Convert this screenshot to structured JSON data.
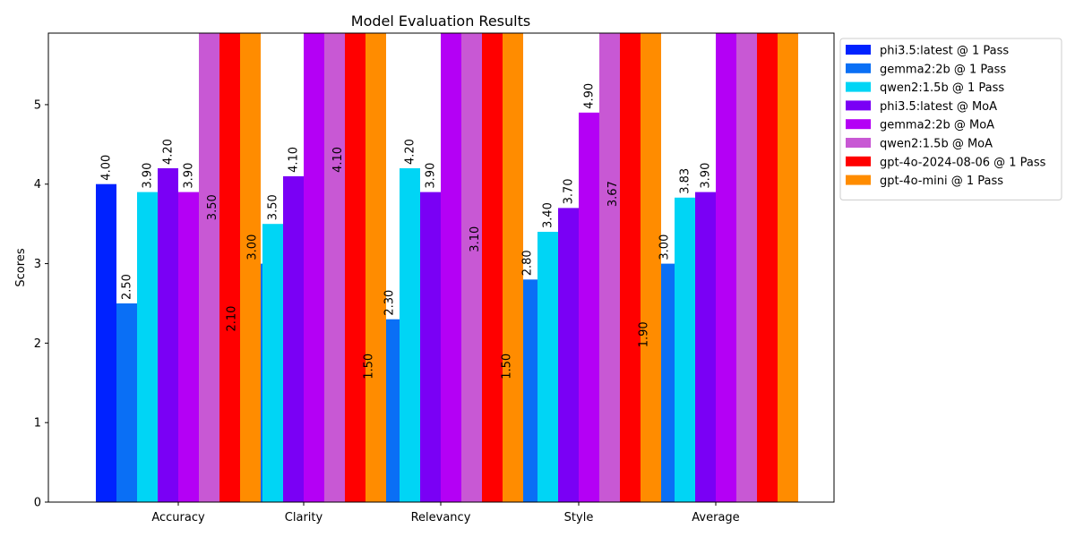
{
  "chart_data": {
    "type": "bar",
    "title": "Model Evaluation Results",
    "xlabel": "",
    "ylabel": "Scores",
    "ylim": [
      0,
      5.9
    ],
    "yticks": [
      0,
      1,
      2,
      3,
      4,
      5
    ],
    "grid": false,
    "legend_position": "outside-right",
    "categories": [
      "Accuracy",
      "Clarity",
      "Relevancy",
      "Style",
      "Average"
    ],
    "series": [
      {
        "name": "phi3.5:latest @ 1 Pass",
        "color": "#0022ff",
        "values": [
          4.0,
          2.1,
          1.5,
          1.5,
          1.9
        ],
        "labels": [
          "4.00",
          "2.10",
          "1.50",
          "1.50",
          "1.90"
        ]
      },
      {
        "name": "gemma2:2b @ 1 Pass",
        "color": "#0a6ff5",
        "values": [
          2.5,
          3.0,
          2.3,
          2.8,
          3.0
        ],
        "labels": [
          "2.50",
          "3.00",
          "2.30",
          "2.80",
          "3.00"
        ]
      },
      {
        "name": "qwen2:1.5b @ 1 Pass",
        "color": "#00d5f5",
        "values": [
          3.9,
          3.5,
          4.2,
          3.4,
          3.83
        ],
        "labels": [
          "3.90",
          "3.50",
          "4.20",
          "3.40",
          "3.83"
        ]
      },
      {
        "name": "phi3.5:latest @ MoA",
        "color": "#7a00f5",
        "values": [
          4.2,
          4.1,
          3.9,
          3.7,
          3.9
        ],
        "labels": [
          "4.20",
          "4.10",
          "3.90",
          "3.70",
          "3.90"
        ]
      },
      {
        "name": "gemma2:2b @ MoA",
        "color": "#b400f5",
        "values": [
          3.9,
          6.2,
          6.2,
          4.9,
          6.2
        ],
        "labels": [
          "3.90",
          null,
          null,
          "4.90",
          null
        ]
      },
      {
        "name": "qwen2:1.5b @ MoA",
        "color": "#c858d4",
        "values": [
          6.2,
          6.2,
          6.2,
          6.2,
          6.2
        ],
        "labels": [
          null,
          null,
          null,
          null,
          null
        ]
      },
      {
        "name": "gpt-4o-2024-08-06 @ 1 Pass",
        "color": "#ff0000",
        "values": [
          6.2,
          6.2,
          6.2,
          6.2,
          6.2
        ],
        "labels": [
          null,
          null,
          null,
          null,
          null
        ]
      },
      {
        "name": "gpt-4o-mini @ 1 Pass",
        "color": "#ff8c00",
        "values": [
          6.2,
          6.2,
          6.2,
          6.2,
          6.2
        ],
        "labels": [
          null,
          null,
          null,
          null,
          null
        ]
      }
    ],
    "overlay_labels": [
      {
        "category": "Accuracy",
        "text": "3.50",
        "value": 3.5
      },
      {
        "category": "Clarity",
        "text": "4.10",
        "value": 4.1
      },
      {
        "category": "Relevancy",
        "text": "3.10",
        "value": 3.1
      },
      {
        "category": "Style",
        "text": "3.67",
        "value": 3.67
      }
    ]
  }
}
